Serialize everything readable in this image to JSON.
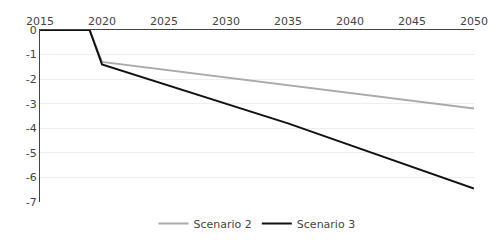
{
  "chart_data": {
    "type": "line",
    "series": [
      {
        "name": "Scenario 2",
        "color": "#aaaaaa",
        "x": [
          2015,
          2019,
          2020,
          2050
        ],
        "values": [
          0,
          0,
          -1.3,
          -3.2
        ]
      },
      {
        "name": "Scenario 3",
        "color": "#111111",
        "x": [
          2015,
          2019,
          2020,
          2035,
          2050
        ],
        "values": [
          0,
          0,
          -1.4,
          -3.8,
          -6.45
        ]
      }
    ],
    "xlim": [
      2015,
      2050
    ],
    "xticks": [
      2015,
      2020,
      2025,
      2030,
      2035,
      2040,
      2045,
      2050
    ],
    "ylim": [
      -7,
      0
    ],
    "yticks": [
      0,
      -1,
      -2,
      -3,
      -4,
      -5,
      -6,
      -7
    ],
    "grid": true,
    "legend": "bottom"
  }
}
